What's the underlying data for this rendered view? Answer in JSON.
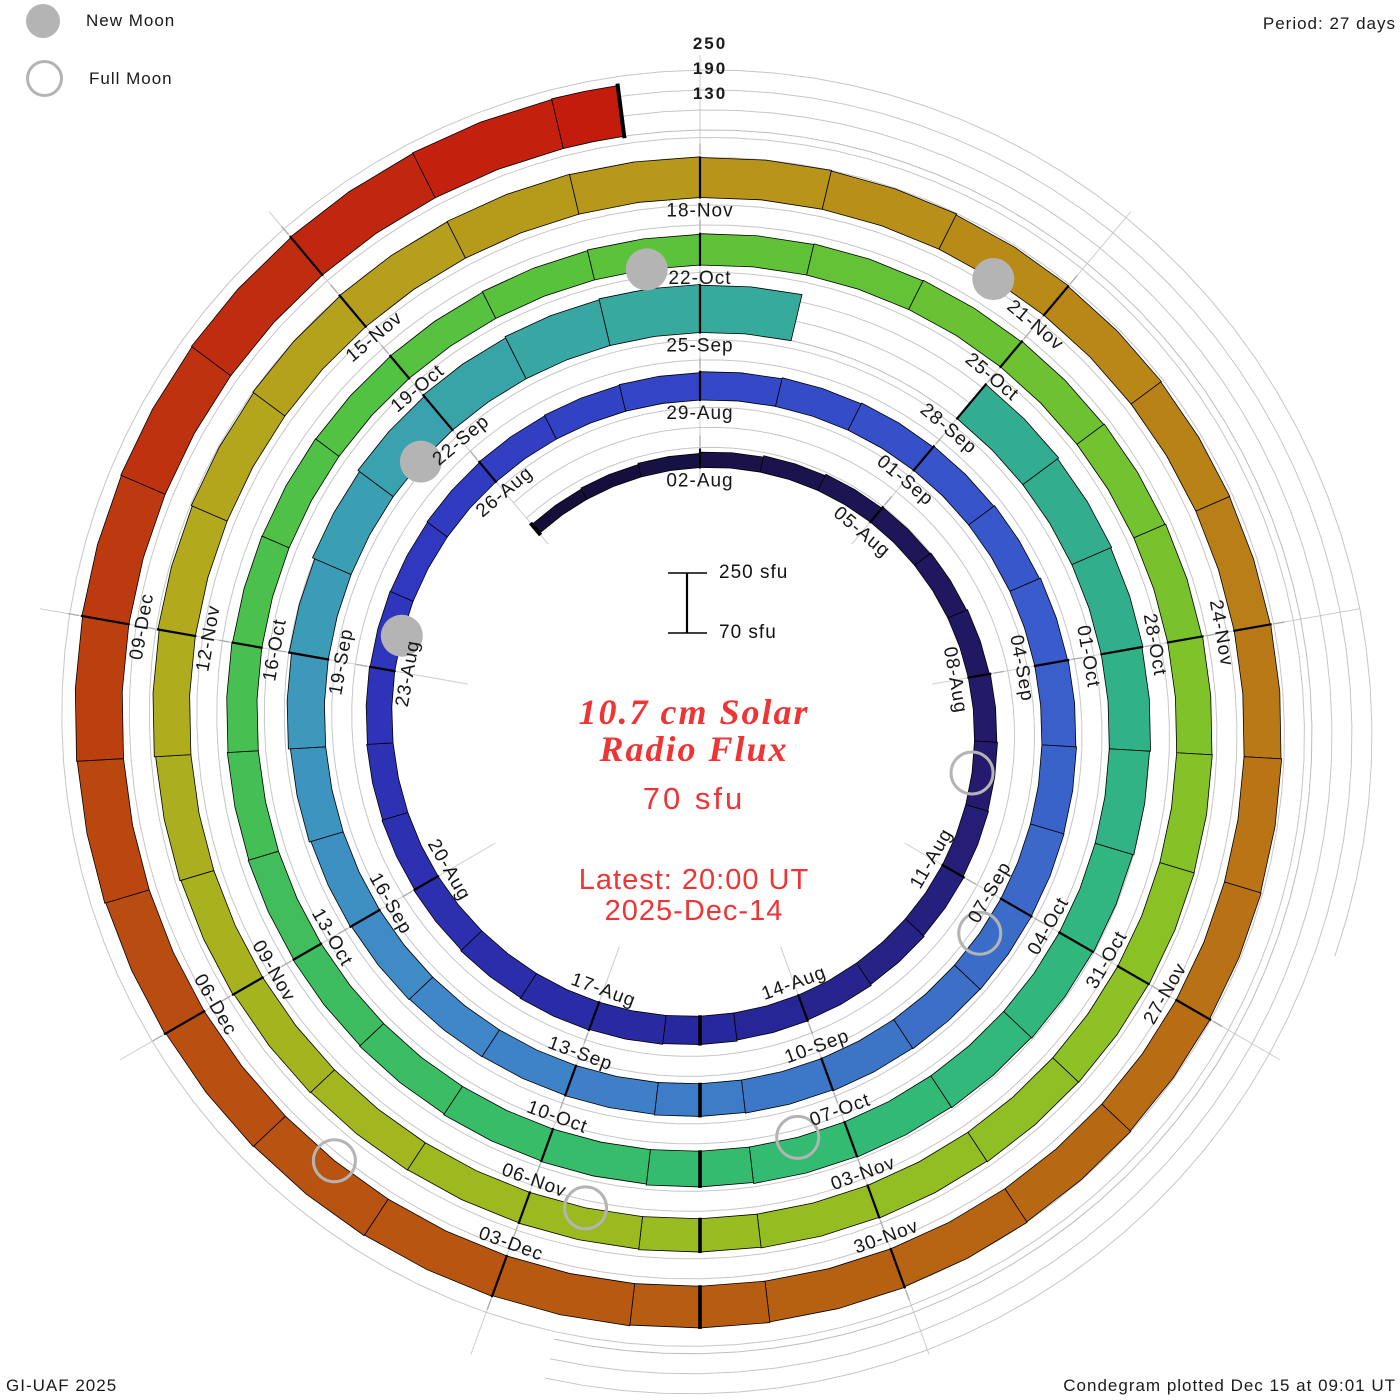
{
  "header": {
    "period_label": "Period: 27 days"
  },
  "legend": {
    "new_moon_label": "New Moon",
    "full_moon_label": "Full Moon"
  },
  "footer": {
    "credit": "GI-UAF 2025",
    "plotted_label": "Condegram plotted Dec 15 at 09:01 UT"
  },
  "center": {
    "title_line1": "10.7 cm Solar",
    "title_line2": "Radio Flux",
    "baseline_label": "70 sfu",
    "latest_line1": "Latest: 20:00 UT",
    "latest_line2": "2025-Dec-14"
  },
  "scale_bar": {
    "max_label": "250 sfu",
    "min_label": "70 sfu"
  },
  "ring_scale_labels": [
    "250",
    "190",
    "130"
  ],
  "chart_data": {
    "type": "spiral-bar (condegram)",
    "quantity": "10.7 cm solar radio flux (sfu)",
    "title": "10.7 cm Solar Radio Flux",
    "period_days": 27,
    "start_date": "2025-07-30",
    "end_date": "2025-12-14",
    "first_label_date": "2025-08-02",
    "flux_min": 70,
    "flux_max": 250,
    "flux_gridlines": [
      130,
      190,
      250
    ],
    "tick_step_days": 3,
    "daily_flux_sfu": [
      105,
      108,
      112,
      116,
      120,
      124,
      128,
      131,
      134,
      137,
      139,
      141,
      144,
      147,
      150,
      152,
      155,
      157,
      159,
      157,
      154,
      151,
      149,
      147,
      145,
      144,
      146,
      148,
      150,
      152,
      155,
      158,
      161,
      164,
      167,
      170,
      172,
      174,
      175,
      176,
      175,
      173,
      170,
      168,
      166,
      165,
      166,
      168,
      171,
      176,
      182,
      189,
      196,
      202,
      207,
      211,
      214,
      212,
      null,
      null,
      204,
      200,
      197,
      194,
      191,
      188,
      186,
      184,
      182,
      180,
      177,
      174,
      172,
      169,
      167,
      165,
      163,
      161,
      159,
      158,
      157,
      158,
      160,
      162,
      164,
      166,
      168,
      170,
      172,
      174,
      176,
      177,
      178,
      177,
      176,
      174,
      172,
      170,
      168,
      167,
      168,
      170,
      173,
      176,
      180,
      184,
      187,
      190,
      192,
      193,
      192,
      190,
      188,
      185,
      183,
      181,
      180,
      181,
      183,
      185,
      187,
      189,
      191,
      193,
      195,
      197,
      199,
      201,
      203,
      206,
      209,
      211,
      213,
      215,
      217,
      219,
      221,
      223
    ],
    "date_tick_labels": [
      "02-Aug",
      "05-Aug",
      "08-Aug",
      "11-Aug",
      "14-Aug",
      "17-Aug",
      "20-Aug",
      "23-Aug",
      "26-Aug",
      "29-Aug",
      "01-Sep",
      "04-Sep",
      "07-Sep",
      "10-Sep",
      "13-Sep",
      "16-Sep",
      "19-Sep",
      "22-Sep",
      "25-Sep",
      "28-Sep",
      "01-Oct",
      "04-Oct",
      "07-Oct",
      "10-Oct",
      "13-Oct",
      "16-Oct",
      "19-Oct",
      "22-Oct",
      "25-Oct",
      "28-Oct",
      "31-Oct",
      "03-Nov",
      "06-Nov",
      "09-Nov",
      "12-Nov",
      "15-Nov",
      "18-Nov",
      "21-Nov",
      "24-Nov",
      "27-Nov",
      "30-Nov",
      "03-Dec",
      "06-Dec",
      "09-Dec"
    ],
    "data_gap_dates": [
      "2025-09-26",
      "2025-09-27"
    ],
    "moon_events": {
      "new_moon_dates": [
        "2025-08-23",
        "2025-09-21",
        "2025-10-21",
        "2025-11-20"
      ],
      "full_moon_dates": [
        "2025-08-09",
        "2025-09-07",
        "2025-10-07",
        "2025-11-05",
        "2025-12-04"
      ]
    },
    "color_stops": [
      [
        0,
        "#140e38"
      ],
      [
        3,
        "#1a1248"
      ],
      [
        10,
        "#241b6e"
      ],
      [
        16,
        "#28289e"
      ],
      [
        24,
        "#2f35bd"
      ],
      [
        30,
        "#3448c8"
      ],
      [
        36,
        "#3a5fcb"
      ],
      [
        40,
        "#3b70c6"
      ],
      [
        46,
        "#3f87c8"
      ],
      [
        51,
        "#3c9cb8"
      ],
      [
        56,
        "#37a99e"
      ],
      [
        62,
        "#31af8c"
      ],
      [
        68,
        "#31ba76"
      ],
      [
        74,
        "#3dbd60"
      ],
      [
        80,
        "#52c242"
      ],
      [
        86,
        "#68c233"
      ],
      [
        92,
        "#8ac226"
      ],
      [
        99,
        "#9db91f"
      ],
      [
        105,
        "#b2a91d"
      ],
      [
        111,
        "#b8941a"
      ],
      [
        117,
        "#b97916"
      ],
      [
        123,
        "#b66012"
      ],
      [
        129,
        "#b94c10"
      ],
      [
        134,
        "#c02c10"
      ],
      [
        137,
        "#c41c0c"
      ]
    ],
    "accent_text_color": "#ee3434",
    "moon_marker_color": "#b4b4b4",
    "gridline_color": "#c6c6c6"
  }
}
